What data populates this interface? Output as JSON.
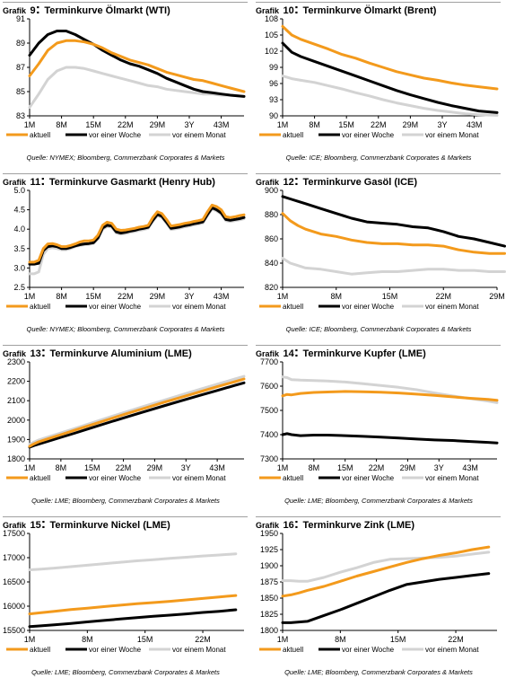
{
  "legend_labels": [
    "aktuell",
    "vor einer Woche",
    "vor einem Monat"
  ],
  "colors": {
    "aktuell": "#F39A1C",
    "vor einer Woche": "#000000",
    "vor einem Monat": "#D3D3D3",
    "separator": "#A0A0A0",
    "axis": "#000000"
  },
  "chart_data": [
    {
      "type": "line",
      "title_prefix": "Grafik",
      "title_number": "9",
      "title": "Terminkurve Ölmarkt (WTI)",
      "source": "Quelle: NYMEX; Bloomberg, Commerzbank Corporates & Markets",
      "x": [
        1,
        3,
        5,
        7,
        9,
        11,
        13,
        15,
        17,
        19,
        21,
        23,
        25,
        27,
        29,
        31,
        33,
        35,
        37,
        39,
        41,
        43,
        45,
        48
      ],
      "xlim": [
        1,
        48
      ],
      "xticks": [
        1,
        8,
        15,
        22,
        29,
        36,
        43
      ],
      "xtick_labels": [
        "1M",
        "8M",
        "15M",
        "22M",
        "29M",
        "3Y",
        "43M"
      ],
      "ylim": [
        83,
        91
      ],
      "yticks": [
        83,
        85,
        87,
        89,
        91
      ],
      "series": [
        {
          "name": "aktuell",
          "values": [
            86.3,
            87.3,
            88.4,
            89.0,
            89.2,
            89.2,
            89.1,
            88.9,
            88.6,
            88.2,
            87.9,
            87.6,
            87.4,
            87.2,
            86.9,
            86.6,
            86.4,
            86.2,
            86.0,
            85.9,
            85.7,
            85.5,
            85.3,
            85.0
          ]
        },
        {
          "name": "vor einer Woche",
          "values": [
            88.0,
            89.0,
            89.7,
            90.0,
            90.0,
            89.7,
            89.3,
            88.9,
            88.4,
            88.0,
            87.6,
            87.3,
            87.1,
            86.8,
            86.5,
            86.1,
            85.8,
            85.5,
            85.2,
            85.0,
            84.9,
            84.8,
            84.7,
            84.6
          ]
        },
        {
          "name": "vor einem Monat",
          "values": [
            83.7,
            84.8,
            86.0,
            86.7,
            87.0,
            87.0,
            86.9,
            86.7,
            86.5,
            86.3,
            86.1,
            85.9,
            85.7,
            85.5,
            85.4,
            85.2,
            85.1,
            85.0,
            84.9,
            84.8,
            84.8,
            84.7,
            84.7,
            84.6
          ]
        }
      ]
    },
    {
      "type": "line",
      "title_prefix": "Grafik",
      "title_number": "10",
      "title": "Terminkurve Ölmarkt (Brent)",
      "source": "Quelle: ICE; Bloomberg, Commerzbank Corporates & Markets",
      "x": [
        1,
        3,
        5,
        8,
        11,
        14,
        17,
        20,
        23,
        26,
        29,
        32,
        35,
        38,
        41,
        44,
        48
      ],
      "xlim": [
        1,
        48
      ],
      "xticks": [
        1,
        8,
        15,
        22,
        29,
        36,
        43
      ],
      "xtick_labels": [
        "1M",
        "8M",
        "15M",
        "22M",
        "29M",
        "3Y",
        "43M"
      ],
      "ylim": [
        90,
        108
      ],
      "yticks": [
        90,
        93,
        96,
        99,
        102,
        105,
        108
      ],
      "series": [
        {
          "name": "aktuell",
          "values": [
            106.6,
            105.0,
            104.2,
            103.3,
            102.4,
            101.4,
            100.7,
            99.8,
            99.0,
            98.2,
            97.6,
            97.0,
            96.6,
            96.1,
            95.7,
            95.4,
            95.0
          ]
        },
        {
          "name": "vor einer Woche",
          "values": [
            103.5,
            101.8,
            101.0,
            100.1,
            99.2,
            98.3,
            97.4,
            96.5,
            95.6,
            94.7,
            93.9,
            93.2,
            92.5,
            91.9,
            91.4,
            90.9,
            90.6
          ]
        },
        {
          "name": "vor einem Monat",
          "values": [
            97.4,
            96.9,
            96.6,
            96.2,
            95.6,
            95.0,
            94.3,
            93.7,
            93.0,
            92.4,
            91.9,
            91.4,
            91.0,
            90.7,
            90.4,
            90.2,
            90.1
          ]
        }
      ]
    },
    {
      "type": "line",
      "title_prefix": "Grafik",
      "title_number": "11",
      "title": "Terminkurve Gasmarkt (Henry Hub)",
      "source": "Quelle: NYMEX; Bloomberg, Commerzbank Corporates & Markets",
      "x": [
        1,
        2,
        3,
        4,
        5,
        6,
        7,
        8,
        9,
        10,
        11,
        12,
        13,
        14,
        15,
        16,
        17,
        18,
        19,
        20,
        21,
        22,
        23,
        24,
        25,
        26,
        27,
        28,
        29,
        30,
        31,
        32,
        33,
        34,
        35,
        36,
        37,
        38,
        39,
        40,
        41,
        42,
        43,
        44,
        45,
        46,
        47,
        48
      ],
      "xlim": [
        1,
        48
      ],
      "xticks": [
        1,
        8,
        15,
        22,
        29,
        36,
        43
      ],
      "xtick_labels": [
        "1M",
        "8M",
        "15M",
        "22M",
        "29M",
        "3Y",
        "43M"
      ],
      "ylim": [
        2.5,
        5.0
      ],
      "yticks": [
        2.5,
        3.0,
        3.5,
        4.0,
        4.5,
        5.0
      ],
      "series": [
        {
          "name": "aktuell",
          "values": [
            3.15,
            3.15,
            3.2,
            3.5,
            3.62,
            3.63,
            3.6,
            3.55,
            3.55,
            3.58,
            3.62,
            3.67,
            3.7,
            3.7,
            3.72,
            3.85,
            4.1,
            4.18,
            4.15,
            4.0,
            3.97,
            3.98,
            4.0,
            4.02,
            4.05,
            4.07,
            4.1,
            4.3,
            4.45,
            4.4,
            4.25,
            4.08,
            4.1,
            4.12,
            4.15,
            4.17,
            4.2,
            4.22,
            4.25,
            4.45,
            4.62,
            4.58,
            4.5,
            4.32,
            4.3,
            4.32,
            4.35,
            4.37
          ]
        },
        {
          "name": "vor einer Woche",
          "values": [
            3.1,
            3.1,
            3.12,
            3.45,
            3.55,
            3.57,
            3.55,
            3.5,
            3.5,
            3.53,
            3.57,
            3.6,
            3.62,
            3.63,
            3.65,
            3.78,
            4.03,
            4.1,
            4.08,
            3.93,
            3.9,
            3.92,
            3.95,
            3.97,
            4.0,
            4.02,
            4.05,
            4.23,
            4.38,
            4.33,
            4.18,
            4.02,
            4.04,
            4.06,
            4.09,
            4.11,
            4.14,
            4.16,
            4.19,
            4.38,
            4.55,
            4.5,
            4.42,
            4.25,
            4.23,
            4.25,
            4.27,
            4.3
          ]
        },
        {
          "name": "vor einem Monat",
          "values": [
            2.85,
            2.85,
            2.9,
            3.35,
            3.5,
            3.52,
            3.5,
            3.47,
            3.47,
            3.5,
            3.55,
            3.58,
            3.6,
            3.61,
            3.63,
            3.75,
            4.0,
            4.07,
            4.05,
            3.9,
            3.87,
            3.89,
            3.92,
            3.94,
            3.97,
            3.99,
            4.02,
            4.2,
            4.35,
            4.3,
            4.15,
            3.99,
            4.01,
            4.03,
            4.06,
            4.08,
            4.11,
            4.13,
            4.16,
            4.35,
            4.52,
            4.47,
            4.39,
            4.22,
            4.2,
            4.22,
            4.24,
            4.27
          ]
        }
      ]
    },
    {
      "type": "line",
      "title_prefix": "Grafik",
      "title_number": "12",
      "title": "Terminkurve Gasöl (ICE)",
      "source": "Quelle: ICE; Bloomberg, Commerzbank Corporates & Markets",
      "x": [
        1,
        2,
        3,
        4,
        6,
        8,
        10,
        12,
        14,
        16,
        18,
        20,
        22,
        24,
        26,
        28,
        30
      ],
      "xlim": [
        1,
        29
      ],
      "xticks": [
        1,
        8,
        15,
        22,
        29
      ],
      "xtick_labels": [
        "1M",
        "8M",
        "15M",
        "22M",
        "29M"
      ],
      "ylim": [
        820,
        900
      ],
      "yticks": [
        820,
        840,
        860,
        880,
        900
      ],
      "series": [
        {
          "name": "aktuell",
          "values": [
            881,
            875,
            871,
            868,
            864,
            862,
            859,
            857,
            856,
            856,
            855,
            855,
            854,
            851,
            849,
            848,
            848
          ]
        },
        {
          "name": "vor einer Woche",
          "values": [
            895,
            893,
            891,
            889,
            885,
            881,
            877,
            874,
            873,
            872,
            870,
            869,
            866,
            862,
            860,
            857,
            854
          ]
        },
        {
          "name": "vor einem Monat",
          "values": [
            844,
            840,
            838,
            836,
            835,
            833,
            831,
            832,
            833,
            833,
            834,
            835,
            835,
            834,
            834,
            833,
            833
          ]
        }
      ]
    },
    {
      "type": "line",
      "title_prefix": "Grafik",
      "title_number": "13",
      "title": "Terminkurve Aluminium (LME)",
      "source": "Quelle: LME; Bloomberg, Commerzbank Corporates & Markets",
      "x": [
        1,
        2,
        3,
        5,
        8,
        11,
        15,
        19,
        23,
        27,
        31,
        35,
        39,
        43,
        47,
        49
      ],
      "xlim": [
        1,
        49
      ],
      "xticks": [
        1,
        8,
        15,
        22,
        29,
        36,
        43
      ],
      "xtick_labels": [
        "1M",
        "8M",
        "15M",
        "22M",
        "29M",
        "3Y",
        "43M"
      ],
      "ylim": [
        1800,
        2300
      ],
      "yticks": [
        1800,
        1900,
        2000,
        2100,
        2200,
        2300
      ],
      "series": [
        {
          "name": "aktuell",
          "values": [
            1865,
            1878,
            1888,
            1903,
            1925,
            1947,
            1977,
            2006,
            2035,
            2063,
            2091,
            2118,
            2145,
            2172,
            2198,
            2212
          ]
        },
        {
          "name": "vor einer Woche",
          "values": [
            1860,
            1869,
            1876,
            1890,
            1911,
            1932,
            1961,
            1990,
            2018,
            2046,
            2073,
            2100,
            2127,
            2153,
            2179,
            2192
          ]
        },
        {
          "name": "vor einem Monat",
          "values": [
            1875,
            1887,
            1897,
            1912,
            1934,
            1956,
            1986,
            2016,
            2045,
            2074,
            2102,
            2130,
            2158,
            2185,
            2212,
            2226
          ]
        }
      ]
    },
    {
      "type": "line",
      "title_prefix": "Grafik",
      "title_number": "14",
      "title": "Terminkurve Kupfer (LME)",
      "source": "Quelle: LME; Bloomberg, Commerzbank Corporates & Markets",
      "x": [
        1,
        2,
        3,
        5,
        8,
        11,
        15,
        19,
        23,
        27,
        31,
        35,
        39,
        43,
        47,
        49
      ],
      "xlim": [
        1,
        49
      ],
      "xticks": [
        1,
        8,
        15,
        22,
        29,
        36,
        43
      ],
      "xtick_labels": [
        "1M",
        "8M",
        "15M",
        "22M",
        "29M",
        "3Y",
        "43M"
      ],
      "ylim": [
        7300,
        7700
      ],
      "yticks": [
        7300,
        7400,
        7500,
        7600,
        7700
      ],
      "series": [
        {
          "name": "aktuell",
          "values": [
            7560,
            7566,
            7564,
            7570,
            7574,
            7576,
            7578,
            7577,
            7575,
            7572,
            7567,
            7562,
            7556,
            7550,
            7545,
            7542
          ]
        },
        {
          "name": "vor einer Woche",
          "values": [
            7400,
            7404,
            7400,
            7396,
            7398,
            7398,
            7396,
            7393,
            7390,
            7386,
            7382,
            7378,
            7376,
            7372,
            7368,
            7366
          ]
        },
        {
          "name": "vor einem Monat",
          "values": [
            7638,
            7635,
            7627,
            7625,
            7623,
            7621,
            7617,
            7610,
            7603,
            7595,
            7585,
            7572,
            7560,
            7549,
            7538,
            7532
          ]
        }
      ]
    },
    {
      "type": "line",
      "title_prefix": "Grafik",
      "title_number": "15",
      "title": "Terminkurve Nickel (LME)",
      "source": "Quelle: LME; Bloomberg, Commerzbank Corporates & Markets",
      "x": [
        1,
        2,
        4,
        6,
        8,
        10,
        12,
        14,
        16,
        18,
        20,
        22,
        24,
        26
      ],
      "xlim": [
        1,
        27
      ],
      "xticks": [
        1,
        8,
        15,
        22
      ],
      "xtick_labels": [
        "1M",
        "8M",
        "15M",
        "22M"
      ],
      "ylim": [
        15500,
        17500
      ],
      "yticks": [
        15500,
        16000,
        16500,
        17000,
        17500
      ],
      "series": [
        {
          "name": "aktuell",
          "values": [
            15840,
            15860,
            15895,
            15930,
            15960,
            15990,
            16020,
            16050,
            16075,
            16100,
            16130,
            16160,
            16190,
            16220
          ]
        },
        {
          "name": "vor einer Woche",
          "values": [
            15580,
            15590,
            15615,
            15645,
            15675,
            15705,
            15735,
            15765,
            15790,
            15815,
            15840,
            15870,
            15895,
            15925
          ]
        },
        {
          "name": "vor einem Monat",
          "values": [
            16750,
            16760,
            16785,
            16815,
            16845,
            16875,
            16905,
            16935,
            16960,
            16985,
            17010,
            17035,
            17055,
            17080
          ]
        }
      ]
    },
    {
      "type": "line",
      "title_prefix": "Grafik",
      "title_number": "16",
      "title": "Terminkurve Zink (LME)",
      "source": "Quelle: LME; Bloomberg, Commerzbank Corporates & Markets",
      "x": [
        1,
        2,
        3,
        4,
        6,
        8,
        10,
        12,
        14,
        16,
        18,
        20,
        22,
        24,
        26
      ],
      "xlim": [
        1,
        27
      ],
      "xticks": [
        1,
        8,
        15,
        22
      ],
      "xtick_labels": [
        "1M",
        "8M",
        "15M",
        "22M"
      ],
      "ylim": [
        1800,
        1950
      ],
      "yticks": [
        1800,
        1825,
        1850,
        1875,
        1900,
        1925,
        1950
      ],
      "series": [
        {
          "name": "aktuell",
          "values": [
            1853,
            1855,
            1858,
            1862,
            1868,
            1876,
            1884,
            1891,
            1898,
            1905,
            1911,
            1916,
            1920,
            1925,
            1929
          ]
        },
        {
          "name": "vor einer Woche",
          "values": [
            1812,
            1812,
            1813,
            1814,
            1823,
            1832,
            1842,
            1852,
            1862,
            1871,
            1875,
            1879,
            1882,
            1885,
            1888
          ]
        },
        {
          "name": "vor einem Monat",
          "values": [
            1877,
            1877,
            1876,
            1876,
            1882,
            1890,
            1897,
            1905,
            1910,
            1911,
            1912,
            1913,
            1915,
            1918,
            1921
          ]
        }
      ]
    }
  ]
}
